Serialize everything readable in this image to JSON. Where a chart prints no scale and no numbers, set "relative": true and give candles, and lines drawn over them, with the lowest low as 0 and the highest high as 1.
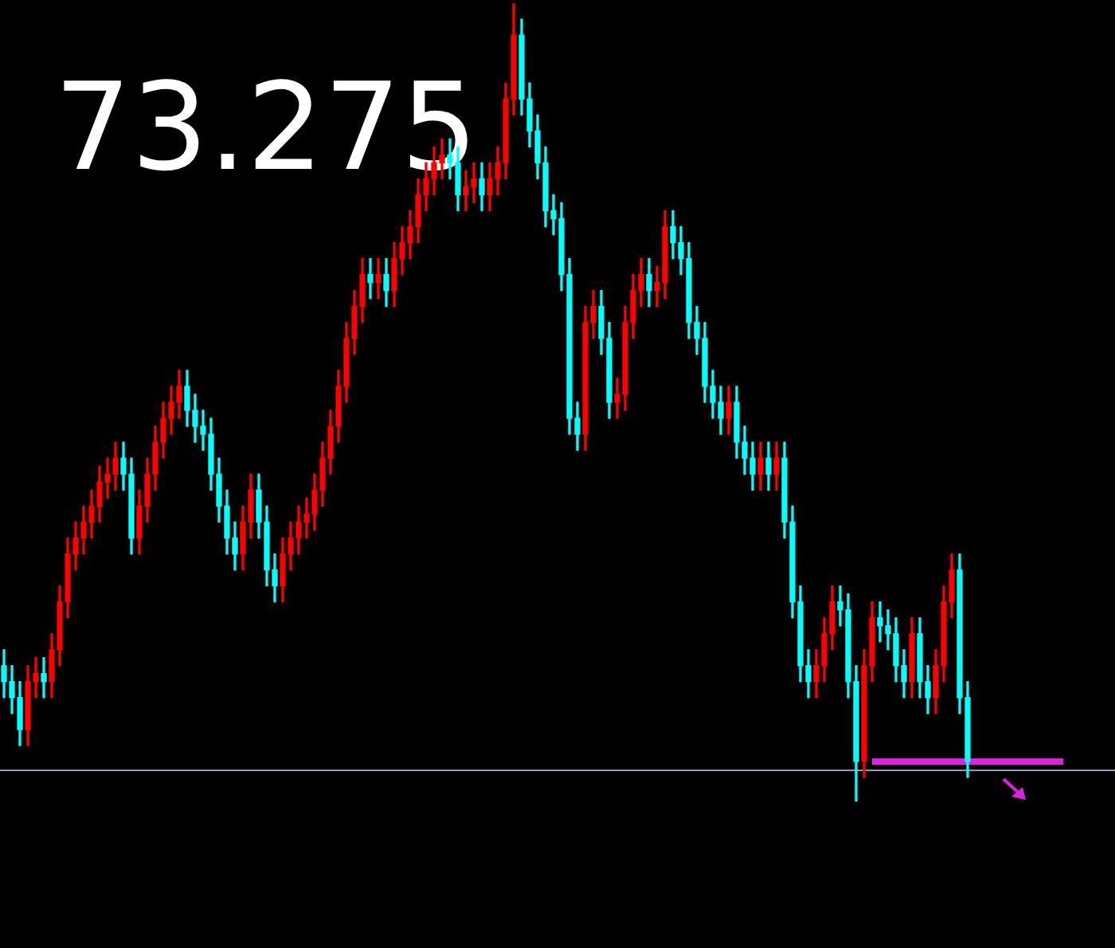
{
  "chart_data": {
    "type": "candlestick",
    "relative": true,
    "legend": false,
    "annotations": [
      "73.275"
    ],
    "categories": [
      null,
      null,
      null,
      null,
      null,
      null,
      null,
      null,
      null,
      null,
      null,
      null,
      null,
      null,
      null,
      null,
      null,
      null,
      null,
      null,
      null,
      null,
      null,
      null,
      null,
      null,
      null,
      null,
      null,
      null,
      null,
      null,
      null,
      null,
      null,
      null,
      null,
      null,
      null,
      null,
      null,
      null,
      null,
      null,
      null,
      null,
      null,
      null,
      null,
      null,
      null,
      null,
      null,
      null,
      null,
      null,
      null,
      null,
      null,
      null,
      null,
      null,
      null,
      null,
      null,
      null,
      null,
      null,
      null,
      null,
      null,
      null,
      null,
      null,
      null,
      null,
      null,
      null,
      null,
      null,
      null,
      null,
      null,
      null,
      null,
      null,
      null,
      null,
      null,
      null,
      null,
      null,
      null,
      null,
      null,
      null,
      null,
      null,
      null,
      null,
      null,
      null,
      null,
      null,
      null,
      null,
      null,
      null,
      null,
      null,
      null,
      null,
      null,
      null,
      null,
      null,
      null,
      null,
      null,
      null,
      null,
      null,
      null,
      null,
      null,
      null,
      null,
      null,
      null,
      null,
      null,
      null,
      null,
      null,
      null,
      null,
      null,
      null,
      null,
      null
    ],
    "ohlc": [
      [
        0.17,
        0.19,
        0.13,
        0.15
      ],
      [
        0.15,
        0.17,
        0.11,
        0.13
      ],
      [
        0.13,
        0.15,
        0.07,
        0.09
      ],
      [
        0.09,
        0.17,
        0.07,
        0.15
      ],
      [
        0.15,
        0.18,
        0.13,
        0.16
      ],
      [
        0.16,
        0.18,
        0.13,
        0.15
      ],
      [
        0.15,
        0.21,
        0.13,
        0.19
      ],
      [
        0.19,
        0.27,
        0.17,
        0.25
      ],
      [
        0.25,
        0.33,
        0.23,
        0.31
      ],
      [
        0.31,
        0.35,
        0.29,
        0.33
      ],
      [
        0.33,
        0.37,
        0.31,
        0.35
      ],
      [
        0.35,
        0.39,
        0.33,
        0.37
      ],
      [
        0.37,
        0.42,
        0.35,
        0.4
      ],
      [
        0.4,
        0.43,
        0.38,
        0.41
      ],
      [
        0.41,
        0.45,
        0.39,
        0.43
      ],
      [
        0.43,
        0.45,
        0.39,
        0.41
      ],
      [
        0.41,
        0.43,
        0.31,
        0.33
      ],
      [
        0.33,
        0.39,
        0.31,
        0.37
      ],
      [
        0.37,
        0.43,
        0.35,
        0.41
      ],
      [
        0.41,
        0.47,
        0.39,
        0.45
      ],
      [
        0.45,
        0.5,
        0.43,
        0.48
      ],
      [
        0.48,
        0.52,
        0.46,
        0.5
      ],
      [
        0.5,
        0.54,
        0.48,
        0.52
      ],
      [
        0.52,
        0.54,
        0.47,
        0.49
      ],
      [
        0.49,
        0.51,
        0.45,
        0.47
      ],
      [
        0.47,
        0.49,
        0.44,
        0.46
      ],
      [
        0.46,
        0.48,
        0.39,
        0.41
      ],
      [
        0.41,
        0.43,
        0.35,
        0.37
      ],
      [
        0.37,
        0.39,
        0.31,
        0.33
      ],
      [
        0.33,
        0.35,
        0.29,
        0.31
      ],
      [
        0.31,
        0.37,
        0.29,
        0.35
      ],
      [
        0.35,
        0.41,
        0.33,
        0.39
      ],
      [
        0.39,
        0.41,
        0.33,
        0.35
      ],
      [
        0.35,
        0.37,
        0.27,
        0.29
      ],
      [
        0.29,
        0.31,
        0.25,
        0.27
      ],
      [
        0.27,
        0.33,
        0.25,
        0.31
      ],
      [
        0.31,
        0.35,
        0.29,
        0.33
      ],
      [
        0.33,
        0.37,
        0.31,
        0.35
      ],
      [
        0.35,
        0.38,
        0.33,
        0.36
      ],
      [
        0.36,
        0.41,
        0.34,
        0.39
      ],
      [
        0.39,
        0.45,
        0.37,
        0.43
      ],
      [
        0.43,
        0.49,
        0.41,
        0.47
      ],
      [
        0.47,
        0.54,
        0.45,
        0.52
      ],
      [
        0.52,
        0.6,
        0.5,
        0.58
      ],
      [
        0.58,
        0.64,
        0.56,
        0.62
      ],
      [
        0.62,
        0.68,
        0.6,
        0.66
      ],
      [
        0.66,
        0.68,
        0.63,
        0.65
      ],
      [
        0.65,
        0.68,
        0.63,
        0.66
      ],
      [
        0.66,
        0.68,
        0.62,
        0.64
      ],
      [
        0.64,
        0.7,
        0.62,
        0.68
      ],
      [
        0.68,
        0.72,
        0.66,
        0.7
      ],
      [
        0.7,
        0.74,
        0.68,
        0.72
      ],
      [
        0.72,
        0.78,
        0.7,
        0.76
      ],
      [
        0.76,
        0.8,
        0.74,
        0.78
      ],
      [
        0.78,
        0.82,
        0.76,
        0.8
      ],
      [
        0.8,
        0.83,
        0.78,
        0.81
      ],
      [
        0.81,
        0.83,
        0.78,
        0.8
      ],
      [
        0.8,
        0.82,
        0.74,
        0.76
      ],
      [
        0.76,
        0.79,
        0.74,
        0.77
      ],
      [
        0.77,
        0.8,
        0.75,
        0.78
      ],
      [
        0.78,
        0.8,
        0.74,
        0.76
      ],
      [
        0.76,
        0.8,
        0.74,
        0.78
      ],
      [
        0.78,
        0.82,
        0.76,
        0.8
      ],
      [
        0.8,
        0.9,
        0.78,
        0.88
      ],
      [
        0.88,
        1.0,
        0.86,
        0.96
      ],
      [
        0.96,
        0.98,
        0.86,
        0.88
      ],
      [
        0.88,
        0.9,
        0.82,
        0.84
      ],
      [
        0.84,
        0.86,
        0.78,
        0.8
      ],
      [
        0.8,
        0.82,
        0.72,
        0.74
      ],
      [
        0.74,
        0.76,
        0.71,
        0.73
      ],
      [
        0.73,
        0.75,
        0.64,
        0.66
      ],
      [
        0.66,
        0.68,
        0.46,
        0.48
      ],
      [
        0.48,
        0.5,
        0.44,
        0.46
      ],
      [
        0.46,
        0.62,
        0.44,
        0.6
      ],
      [
        0.6,
        0.64,
        0.58,
        0.62
      ],
      [
        0.62,
        0.64,
        0.56,
        0.58
      ],
      [
        0.58,
        0.6,
        0.48,
        0.5
      ],
      [
        0.5,
        0.53,
        0.48,
        0.51
      ],
      [
        0.51,
        0.62,
        0.49,
        0.6
      ],
      [
        0.6,
        0.66,
        0.58,
        0.64
      ],
      [
        0.64,
        0.68,
        0.62,
        0.66
      ],
      [
        0.66,
        0.68,
        0.62,
        0.64
      ],
      [
        0.64,
        0.67,
        0.62,
        0.65
      ],
      [
        0.65,
        0.74,
        0.63,
        0.72
      ],
      [
        0.72,
        0.74,
        0.68,
        0.7
      ],
      [
        0.7,
        0.72,
        0.66,
        0.68
      ],
      [
        0.68,
        0.7,
        0.58,
        0.6
      ],
      [
        0.6,
        0.62,
        0.56,
        0.58
      ],
      [
        0.58,
        0.6,
        0.5,
        0.52
      ],
      [
        0.52,
        0.54,
        0.48,
        0.5
      ],
      [
        0.5,
        0.52,
        0.46,
        0.48
      ],
      [
        0.48,
        0.52,
        0.46,
        0.5
      ],
      [
        0.5,
        0.52,
        0.43,
        0.45
      ],
      [
        0.45,
        0.47,
        0.41,
        0.43
      ],
      [
        0.43,
        0.45,
        0.39,
        0.41
      ],
      [
        0.41,
        0.45,
        0.39,
        0.43
      ],
      [
        0.43,
        0.45,
        0.39,
        0.41
      ],
      [
        0.41,
        0.45,
        0.39,
        0.43
      ],
      [
        0.43,
        0.45,
        0.33,
        0.35
      ],
      [
        0.35,
        0.37,
        0.23,
        0.25
      ],
      [
        0.25,
        0.27,
        0.15,
        0.17
      ],
      [
        0.17,
        0.19,
        0.13,
        0.15
      ],
      [
        0.15,
        0.19,
        0.13,
        0.17
      ],
      [
        0.17,
        0.23,
        0.15,
        0.21
      ],
      [
        0.21,
        0.27,
        0.19,
        0.25
      ],
      [
        0.25,
        0.27,
        0.22,
        0.24
      ],
      [
        0.24,
        0.26,
        0.13,
        0.15
      ],
      [
        0.15,
        0.17,
        0.0,
        0.05
      ],
      [
        0.05,
        0.19,
        0.03,
        0.17
      ],
      [
        0.17,
        0.25,
        0.15,
        0.23
      ],
      [
        0.23,
        0.25,
        0.2,
        0.22
      ],
      [
        0.22,
        0.24,
        0.19,
        0.21
      ],
      [
        0.21,
        0.23,
        0.15,
        0.17
      ],
      [
        0.17,
        0.19,
        0.13,
        0.15
      ],
      [
        0.15,
        0.23,
        0.13,
        0.21
      ],
      [
        0.21,
        0.23,
        0.13,
        0.15
      ],
      [
        0.15,
        0.17,
        0.11,
        0.13
      ],
      [
        0.13,
        0.19,
        0.11,
        0.17
      ],
      [
        0.17,
        0.27,
        0.15,
        0.25
      ],
      [
        0.25,
        0.31,
        0.23,
        0.29
      ],
      [
        0.29,
        0.31,
        0.11,
        0.13
      ],
      [
        0.13,
        0.15,
        0.03,
        0.05
      ],
      null,
      null,
      null,
      null,
      null,
      null,
      null,
      null,
      null,
      null,
      null,
      null,
      null,
      null,
      null,
      null,
      null,
      null
    ],
    "colors": [
      "#00ffff",
      "#00ffff",
      "#00ffff",
      "#ff0000",
      "#ff0000",
      "#00ffff",
      "#ff0000",
      "#ff0000",
      "#ff0000",
      "#ff0000",
      "#ff0000",
      "#ff0000",
      "#ff0000",
      "#ff0000",
      "#ff0000",
      "#00ffff",
      "#00ffff",
      "#ff0000",
      "#ff0000",
      "#ff0000",
      "#ff0000",
      "#ff0000",
      "#ff0000",
      "#00ffff",
      "#00ffff",
      "#00ffff",
      "#00ffff",
      "#00ffff",
      "#00ffff",
      "#00ffff",
      "#ff0000",
      "#ff0000",
      "#00ffff",
      "#00ffff",
      "#00ffff",
      "#ff0000",
      "#ff0000",
      "#ff0000",
      "#ff0000",
      "#ff0000",
      "#ff0000",
      "#ff0000",
      "#ff0000",
      "#ff0000",
      "#ff0000",
      "#ff0000",
      "#00ffff",
      "#ff0000",
      "#00ffff",
      "#ff0000",
      "#ff0000",
      "#ff0000",
      "#ff0000",
      "#ff0000",
      "#ff0000",
      "#ff0000",
      "#00ffff",
      "#00ffff",
      "#ff0000",
      "#ff0000",
      "#00ffff",
      "#ff0000",
      "#ff0000",
      "#ff0000",
      "#ff0000",
      "#00ffff",
      "#00ffff",
      "#00ffff",
      "#00ffff",
      "#00ffff",
      "#00ffff",
      "#00ffff",
      "#00ffff",
      "#ff0000",
      "#ff0000",
      "#00ffff",
      "#00ffff",
      "#ff0000",
      "#ff0000",
      "#ff0000",
      "#ff0000",
      "#00ffff",
      "#ff0000",
      "#ff0000",
      "#00ffff",
      "#00ffff",
      "#00ffff",
      "#00ffff",
      "#00ffff",
      "#00ffff",
      "#00ffff",
      "#ff0000",
      "#00ffff",
      "#00ffff",
      "#00ffff",
      "#ff0000",
      "#00ffff",
      "#ff0000",
      "#00ffff",
      "#00ffff",
      "#00ffff",
      "#00ffff",
      "#ff0000",
      "#ff0000",
      "#ff0000",
      "#00ffff",
      "#00ffff",
      "#00ffff",
      "#ff0000",
      "#ff0000",
      "#00ffff",
      "#00ffff",
      "#00ffff",
      "#00ffff",
      "#ff0000",
      "#00ffff",
      "#00ffff",
      "#ff0000",
      "#ff0000",
      "#ff0000",
      "#00ffff",
      "#00ffff",
      null,
      null,
      null,
      null,
      null,
      null,
      null,
      null,
      null,
      null,
      null,
      null,
      null,
      null,
      null,
      null,
      null,
      null
    ],
    "series": [
      {
        "type": "line",
        "color": "#e020e0",
        "values": [
          null,
          null,
          null,
          null,
          null,
          null,
          null,
          null,
          null,
          null,
          null,
          null,
          null,
          null,
          null,
          null,
          null,
          null,
          null,
          null,
          null,
          null,
          null,
          null,
          null,
          null,
          null,
          null,
          null,
          null,
          null,
          null,
          null,
          null,
          null,
          null,
          null,
          null,
          null,
          null,
          null,
          null,
          null,
          null,
          null,
          null,
          null,
          null,
          null,
          null,
          null,
          null,
          null,
          null,
          null,
          null,
          null,
          null,
          null,
          null,
          null,
          null,
          null,
          null,
          null,
          null,
          null,
          null,
          null,
          null,
          null,
          null,
          null,
          null,
          null,
          null,
          null,
          null,
          null,
          null,
          null,
          null,
          null,
          null,
          null,
          null,
          null,
          null,
          null,
          null,
          null,
          null,
          null,
          null,
          null,
          null,
          null,
          null,
          null,
          null,
          null,
          null,
          null,
          null,
          null,
          null,
          null,
          null,
          null,
          0.05,
          0.05,
          0.05,
          0.05,
          0.05,
          0.05,
          0.05,
          0.05,
          0.05,
          0.05,
          0.05,
          0.05,
          0.05,
          0.05,
          0.05,
          0.05,
          0.05,
          0.05,
          0.05,
          0.05,
          0.05,
          0.05,
          0.05,
          0.05,
          0.05,
          null,
          null,
          null,
          null,
          null,
          null
        ]
      }
    ],
    "ref_lines": [
      {
        "axis": "y",
        "value": 0.04,
        "color": "#8c9cc0"
      }
    ]
  }
}
